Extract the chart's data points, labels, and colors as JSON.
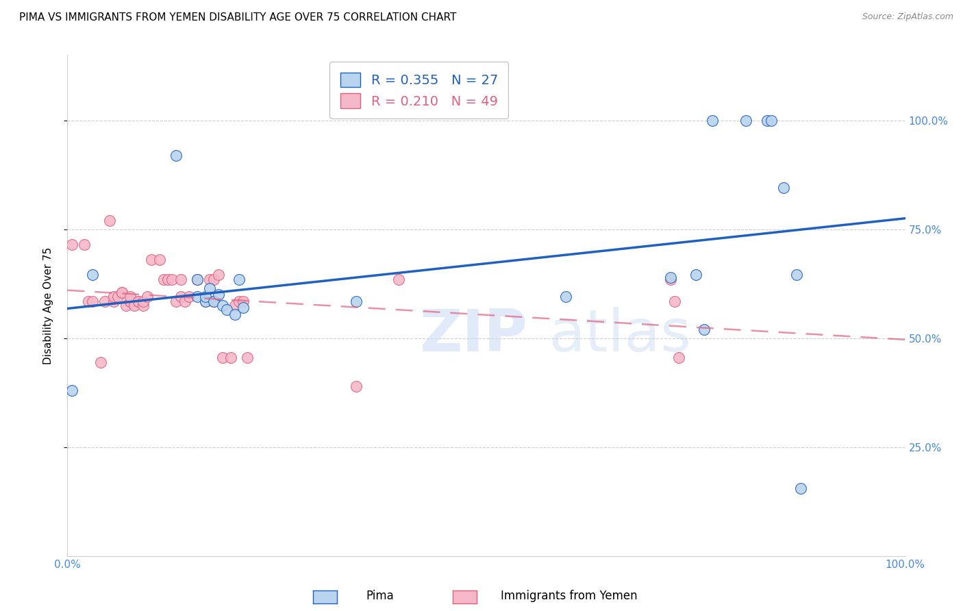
{
  "title": "PIMA VS IMMIGRANTS FROM YEMEN DISABILITY AGE OVER 75 CORRELATION CHART",
  "source": "Source: ZipAtlas.com",
  "ylabel": "Disability Age Over 75",
  "legend_label_pima": "Pima",
  "legend_label_yemen": "Immigrants from Yemen",
  "R_pima": 0.355,
  "N_pima": 27,
  "R_yemen": 0.21,
  "N_yemen": 49,
  "pima_color": "#b8d4ee",
  "pima_line_color": "#2060c0",
  "yemen_color": "#f4b8c8",
  "yemen_line_color": "#e06080",
  "background_color": "#ffffff",
  "axis_color": "#4488dd",
  "grid_color": "#cccccc",
  "xlim": [
    0,
    1
  ],
  "ylim": [
    0,
    1.15
  ],
  "yticks": [
    0.25,
    0.5,
    0.75,
    1.0
  ],
  "ytick_labels": [
    "25.0%",
    "50.0%",
    "75.0%",
    "100.0%"
  ],
  "pima_x": [
    0.005,
    0.03,
    0.13,
    0.155,
    0.155,
    0.165,
    0.165,
    0.17,
    0.175,
    0.18,
    0.185,
    0.19,
    0.2,
    0.205,
    0.21,
    0.345,
    0.595,
    0.72,
    0.75,
    0.76,
    0.77,
    0.81,
    0.835,
    0.84,
    0.855,
    0.87,
    0.875
  ],
  "pima_y": [
    0.38,
    0.645,
    0.92,
    0.595,
    0.635,
    0.585,
    0.595,
    0.615,
    0.585,
    0.6,
    0.575,
    0.565,
    0.555,
    0.635,
    0.57,
    0.585,
    0.595,
    0.64,
    0.645,
    0.52,
    1.0,
    1.0,
    1.0,
    1.0,
    0.845,
    0.645,
    0.155
  ],
  "yemen_x": [
    0.005,
    0.02,
    0.025,
    0.03,
    0.04,
    0.045,
    0.05,
    0.055,
    0.055,
    0.06,
    0.065,
    0.065,
    0.07,
    0.075,
    0.075,
    0.075,
    0.08,
    0.085,
    0.085,
    0.09,
    0.09,
    0.095,
    0.1,
    0.11,
    0.115,
    0.12,
    0.125,
    0.13,
    0.135,
    0.135,
    0.14,
    0.145,
    0.155,
    0.165,
    0.17,
    0.175,
    0.175,
    0.18,
    0.185,
    0.195,
    0.2,
    0.205,
    0.21,
    0.215,
    0.345,
    0.395,
    0.72,
    0.725,
    0.73
  ],
  "yemen_y": [
    0.715,
    0.715,
    0.585,
    0.585,
    0.445,
    0.585,
    0.77,
    0.585,
    0.595,
    0.595,
    0.605,
    0.605,
    0.575,
    0.585,
    0.585,
    0.595,
    0.575,
    0.585,
    0.585,
    0.575,
    0.585,
    0.595,
    0.68,
    0.68,
    0.635,
    0.635,
    0.635,
    0.585,
    0.595,
    0.635,
    0.585,
    0.595,
    0.635,
    0.585,
    0.635,
    0.635,
    0.585,
    0.645,
    0.455,
    0.455,
    0.575,
    0.585,
    0.585,
    0.455,
    0.39,
    0.635,
    0.635,
    0.585,
    0.455
  ]
}
